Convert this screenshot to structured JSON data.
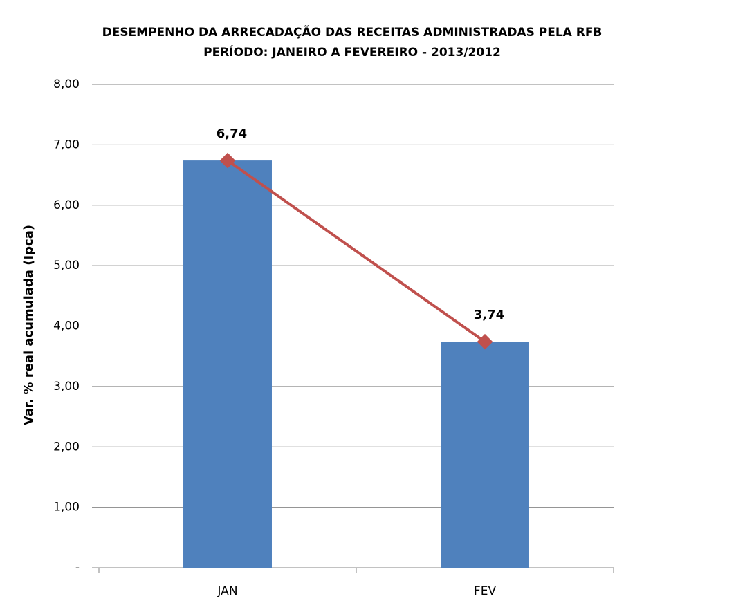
{
  "chart_data": {
    "type": "bar",
    "title": [
      "DESEMPENHO DA ARRECADAÇÃO DAS RECEITAS ADMINISTRADAS PELA RFB",
      "PERÍODO: JANEIRO A FEVEREIRO - 2013/2012"
    ],
    "y_label": "Var. % real acumulada (Ipca)",
    "categories": [
      "JAN",
      "FEV"
    ],
    "series": [
      {
        "type": "bar",
        "color": "#4f81bd",
        "values": [
          6.74,
          3.74
        ]
      },
      {
        "type": "line",
        "color": "#c0504d",
        "values": [
          6.74,
          3.74
        ],
        "value_labels": [
          "6,74",
          "3,74"
        ]
      }
    ],
    "ylim": [
      0,
      8
    ],
    "yticks": [
      {
        "value": 0,
        "label": "-"
      },
      {
        "value": 1,
        "label": "1,00"
      },
      {
        "value": 2,
        "label": "2,00"
      },
      {
        "value": 3,
        "label": "3,00"
      },
      {
        "value": 4,
        "label": "4,00"
      },
      {
        "value": 5,
        "label": "5,00"
      },
      {
        "value": 6,
        "label": "6,00"
      },
      {
        "value": 7,
        "label": "7,00"
      },
      {
        "value": 8,
        "label": "8,00"
      }
    ],
    "grid": true
  }
}
